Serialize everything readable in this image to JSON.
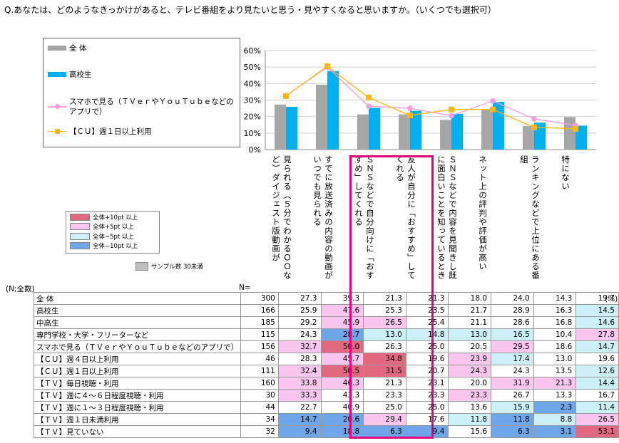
{
  "question": "Q.あなたは、どのようなきっかけがあると、テレビ番組をより見たいと思う・見やすくなると思いますか。（いくつでも選択可）",
  "legend": {
    "series": [
      {
        "name": "全 体",
        "color": "#a6a6a6",
        "kind": "bar"
      },
      {
        "name": "高校生",
        "color": "#00b0f0",
        "kind": "bar"
      },
      {
        "name": "スマホで見る（ＴＶｅｒやＹｏｕＴｕｂｅなどのアプリで）",
        "color": "#f59ee0",
        "kind": "line-circle"
      },
      {
        "name": "【ＣＵ】週１日以上利用",
        "color": "#fdb813",
        "kind": "line-square"
      }
    ]
  },
  "highlight_legend": [
    {
      "label": "全体+10pt 以上",
      "color": "#e0697f"
    },
    {
      "label": "全体+5pt 以上",
      "color": "#f9c6ef"
    },
    {
      "label": "全体−5pt 以上",
      "color": "#cdf0f7"
    },
    {
      "label": "全体−10pt 以上",
      "color": "#6fa6e8"
    }
  ],
  "sample_note": "サンプル数 30未満",
  "table": {
    "n_label": "(N;全数)",
    "n_header": "N=",
    "unit": "(%)",
    "columns": [
      "見られる（５分でわかるＯＯなど）ダイジェスト版動画が",
      "すでに放送済みの内容の動画がいつでも見られる",
      "ＳＮＳなどで自分向けに「おすすめ」してくれる",
      "友人が自分に「おすすめ」してくれる",
      "ＳＮＳなどで内容を見聞きし既に面白いことを知っているとき",
      "ネット上の評判や評価が高い",
      "ランキングなどで上位にある番組",
      "特にない"
    ],
    "rows": [
      {
        "label": "全 体",
        "n": "300",
        "values": [
          "27.3",
          "39.3",
          "21.3",
          "21.3",
          "18.0",
          "24.0",
          "14.3",
          "19.7"
        ],
        "hl": [
          "",
          "",
          "",
          "",
          "",
          "",
          "",
          ""
        ]
      },
      {
        "label": "高校生",
        "n": "166",
        "values": [
          "25.9",
          "47.6",
          "25.3",
          "23.5",
          "21.7",
          "28.9",
          "16.3",
          "14.5"
        ],
        "hl": [
          "",
          "p5",
          "",
          "",
          "",
          "",
          "",
          "m5"
        ]
      },
      {
        "label": "中高生",
        "n": "185",
        "values": [
          "29.2",
          "45.9",
          "26.5",
          "25.4",
          "21.1",
          "28.6",
          "16.8",
          "14.6"
        ],
        "hl": [
          "",
          "p5",
          "p5",
          "",
          "",
          "",
          "",
          "m5"
        ]
      },
      {
        "label": "専門学校・大学・フリーターなど",
        "n": "115",
        "values": [
          "24.3",
          "28.7",
          "13.0",
          "14.8",
          "13.0",
          "16.5",
          "10.4",
          "27.8"
        ],
        "hl": [
          "",
          "m10",
          "m5",
          "m5",
          "m5",
          "m5",
          "",
          "p5"
        ]
      },
      {
        "label": "スマホで見る（ＴＶｅｒやＹｏｕＴｕｂｅなどのアプリで）",
        "n": "156",
        "values": [
          "32.7",
          "50.0",
          "26.3",
          "25.0",
          "20.5",
          "29.5",
          "18.6",
          "14.7"
        ],
        "hl": [
          "p5",
          "p10",
          "",
          "",
          "",
          "p5",
          "",
          "m5"
        ]
      },
      {
        "label": "【ＣＵ】週４日以上利用",
        "n": "46",
        "values": [
          "28.3",
          "45.7",
          "34.8",
          "19.6",
          "23.9",
          "17.4",
          "13.0",
          "19.6"
        ],
        "hl": [
          "",
          "p5",
          "p10",
          "",
          "p5",
          "m5",
          "",
          ""
        ]
      },
      {
        "label": "【ＣＵ】週１日以上利用",
        "n": "111",
        "values": [
          "32.4",
          "50.5",
          "31.5",
          "20.7",
          "24.3",
          "24.3",
          "13.5",
          "12.6"
        ],
        "hl": [
          "p5",
          "p10",
          "p10",
          "",
          "p5",
          "",
          "",
          "m5"
        ]
      },
      {
        "label": "【ＴＶ】毎日視聴・利用",
        "n": "160",
        "values": [
          "33.8",
          "46.3",
          "21.3",
          "23.1",
          "20.0",
          "31.9",
          "21.3",
          "14.4"
        ],
        "hl": [
          "p5",
          "p5",
          "",
          "",
          "",
          "p5",
          "p5",
          "m5"
        ]
      },
      {
        "label": "【ＴＶ】週に４～６日程度視聴・利用",
        "n": "30",
        "values": [
          "33.3",
          "43.3",
          "23.3",
          "23.3",
          "23.3",
          "26.7",
          "13.3",
          "16.7"
        ],
        "hl": [
          "p5",
          "",
          "",
          "",
          "p5",
          "",
          "",
          ""
        ]
      },
      {
        "label": "【ＴＶ】週に１～３日程度視聴・利用",
        "n": "44",
        "values": [
          "22.7",
          "40.9",
          "25.0",
          "25.0",
          "13.6",
          "15.9",
          "2.3",
          "11.4"
        ],
        "hl": [
          "",
          "",
          "",
          "",
          "",
          "m5",
          "m10",
          "m5"
        ]
      },
      {
        "label": "【ＴＶ】週１日未満利用",
        "n": "34",
        "values": [
          "14.7",
          "20.6",
          "29.4",
          "17.6",
          "11.8",
          "11.8",
          "8.8",
          "26.5"
        ],
        "hl": [
          "m10",
          "m10",
          "p5",
          "",
          "m5",
          "m10",
          "m5",
          "p5"
        ]
      },
      {
        "label": "【ＴＶ】見ていない",
        "n": "32",
        "values": [
          "9.4",
          "18.8",
          "6.3",
          "9.4",
          "15.6",
          "6.3",
          "3.1",
          "53.1"
        ],
        "hl": [
          "m10",
          "m10",
          "m10",
          "m10",
          "",
          "m10",
          "m10",
          "p10"
        ]
      }
    ]
  },
  "chart_data": {
    "type": "bar",
    "ylim": [
      0,
      60
    ],
    "yticks": [
      "0%",
      "10%",
      "20%",
      "30%",
      "40%",
      "50%",
      "60%"
    ],
    "grid": true,
    "legend_position": "left",
    "categories": [
      "見られる（５分でわかるＯＯなど）ダイジェスト版動画が",
      "すでに放送済みの内容の動画がいつでも見られる",
      "ＳＮＳなどで自分向けに「おすすめ」してくれる",
      "友人が自分に「おすすめ」してくれる",
      "ＳＮＳなどで内容を見聞きし既に面白いことを知っているとき",
      "ネット上の評判や評価が高い",
      "ランキングなどで上位にある番組",
      "特にない"
    ],
    "series": [
      {
        "name": "全 体",
        "kind": "bar",
        "color": "#a6a6a6",
        "values": [
          27.3,
          39.3,
          21.3,
          21.3,
          18.0,
          24.0,
          14.3,
          19.7
        ]
      },
      {
        "name": "高校生",
        "kind": "bar",
        "color": "#00b0f0",
        "values": [
          25.9,
          47.6,
          25.3,
          23.5,
          21.7,
          28.9,
          16.3,
          14.5
        ]
      },
      {
        "name": "スマホで見る（ＴＶｅｒやＹｏｕＴｕｂｅなどのアプリで）",
        "kind": "line",
        "marker": "circle",
        "color": "#f59ee0",
        "values": [
          32.7,
          50.0,
          26.3,
          25.0,
          20.5,
          29.5,
          18.6,
          14.7
        ]
      },
      {
        "name": "【ＣＵ】週１日以上利用",
        "kind": "line",
        "marker": "square",
        "color": "#fdb813",
        "values": [
          32.4,
          50.5,
          31.5,
          20.7,
          24.3,
          24.3,
          13.5,
          12.6
        ]
      }
    ]
  }
}
